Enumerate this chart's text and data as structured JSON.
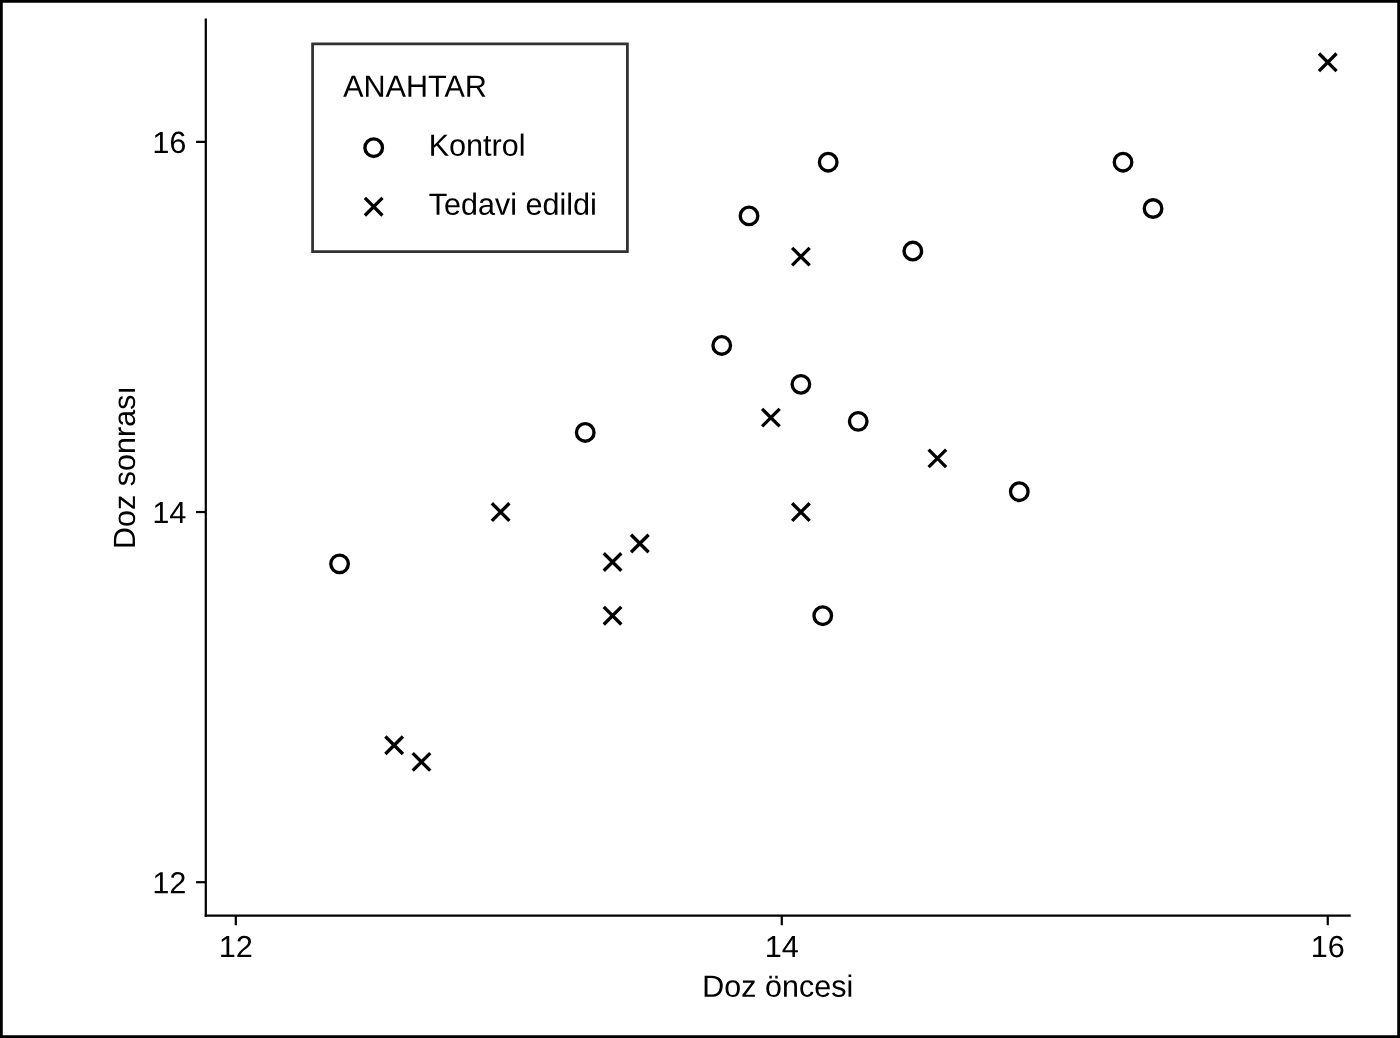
{
  "chart_data": {
    "type": "scatter",
    "xlabel": "Doz öncesi",
    "ylabel": "Doz sonrası",
    "legend_title": "ANAHTAR",
    "legend": "top left",
    "grid": false,
    "xlim": [
      11.89,
      16.08
    ],
    "ylim": [
      11.82,
      16.66
    ],
    "xticks": [
      12,
      14,
      16
    ],
    "yticks": [
      12,
      14,
      16
    ],
    "series": [
      {
        "name": "Kontrol",
        "color": "#000000",
        "marker": "circle",
        "x": [
          12.38,
          13.28,
          13.78,
          13.88,
          14.07,
          14.17,
          14.28,
          14.15,
          14.48,
          14.87,
          15.25,
          15.36
        ],
        "values": [
          13.72,
          14.43,
          14.9,
          15.6,
          14.69,
          15.89,
          14.49,
          13.44,
          15.41,
          14.11,
          15.89,
          15.64
        ]
      },
      {
        "name": "Tedavi edildi",
        "color": "#000000",
        "marker": "cross",
        "x": [
          12.97,
          12.58,
          12.68,
          13.38,
          13.38,
          13.48,
          13.96,
          14.07,
          14.07,
          14.57,
          16.0
        ],
        "values": [
          14.0,
          12.74,
          12.65,
          13.73,
          13.44,
          13.83,
          14.51,
          15.38,
          14.0,
          14.29,
          16.43
        ]
      }
    ]
  }
}
